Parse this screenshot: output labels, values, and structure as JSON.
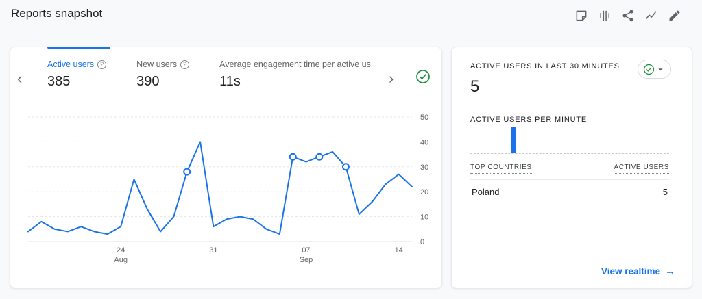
{
  "page": {
    "title": "Reports snapshot"
  },
  "header": {
    "icons": [
      "note-icon",
      "comparison-icon",
      "share-icon",
      "insights-icon",
      "edit-icon"
    ]
  },
  "metrics": {
    "tabs": [
      {
        "label": "Active users",
        "value": "385",
        "active": true
      },
      {
        "label": "New users",
        "value": "390",
        "active": false
      },
      {
        "label": "Average engagement time per active us",
        "value": "11s",
        "active": false
      }
    ]
  },
  "chart_data": {
    "type": "line",
    "series_name": "Active users",
    "values": [
      4,
      8,
      5,
      4,
      6,
      4,
      3,
      6,
      25,
      13,
      4,
      10,
      28,
      40,
      6,
      9,
      10,
      9,
      5,
      3,
      34,
      32,
      34,
      36,
      30,
      11,
      16,
      23,
      27,
      22
    ],
    "marker_indices": [
      12,
      20,
      22,
      24
    ],
    "x_ticks": [
      {
        "index": 7,
        "label": "24",
        "sublabel": "Aug"
      },
      {
        "index": 14,
        "label": "31",
        "sublabel": ""
      },
      {
        "index": 21,
        "label": "07",
        "sublabel": "Sep"
      },
      {
        "index": 28,
        "label": "14",
        "sublabel": ""
      }
    ],
    "y_ticks": [
      0,
      10,
      20,
      30,
      40,
      50
    ],
    "ylim": [
      0,
      50
    ],
    "line_color": "#1a73e8",
    "grid": "dashed-horizontal",
    "legend": "none",
    "y_axis_position": "right"
  },
  "realtime": {
    "title": "ACTIVE USERS IN LAST 30 MINUTES",
    "active_users": "5",
    "per_minute_title": "ACTIVE USERS PER MINUTE",
    "per_minute": {
      "slots": 30,
      "bars": [
        {
          "index": 6,
          "value": 5
        }
      ],
      "max": 5
    },
    "table": {
      "countries_header": "TOP COUNTRIES",
      "users_header": "ACTIVE USERS",
      "rows": [
        {
          "country": "Poland",
          "users": "5"
        }
      ]
    },
    "view_realtime_label": "View realtime",
    "arrow": "→"
  },
  "colors": {
    "accent_blue": "#1a73e8",
    "status_green": "#1e8e3e",
    "text_gray": "#5f6368",
    "background": "#f8f9fa"
  }
}
